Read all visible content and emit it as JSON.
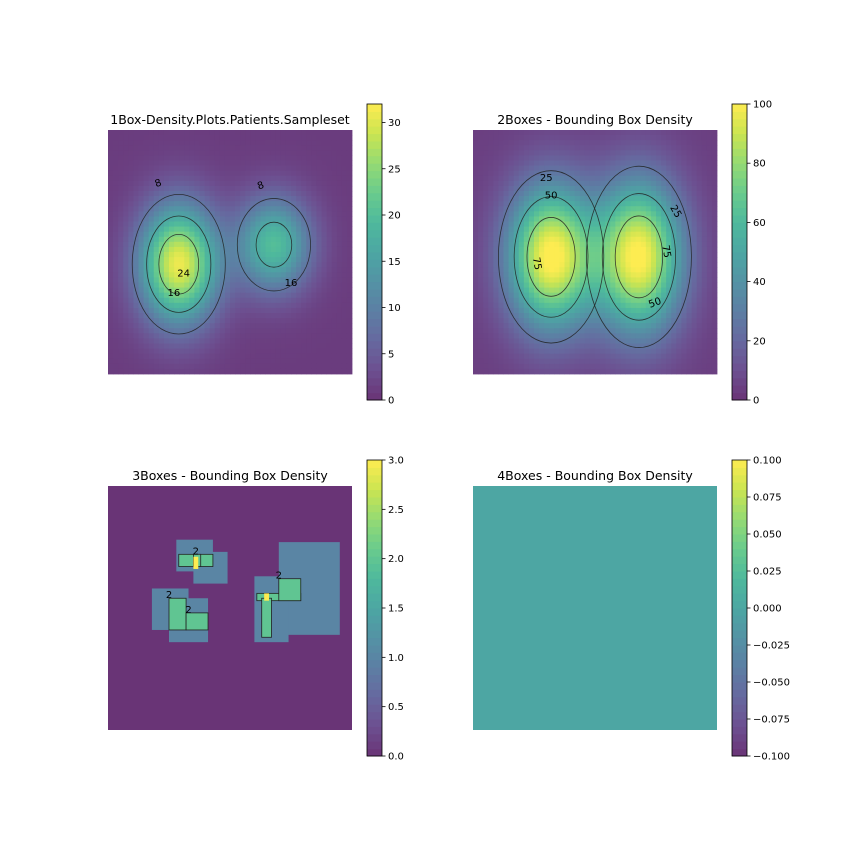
{
  "chart_data": [
    {
      "type": "heatmap",
      "title": "1Box-Density.Plots.Patients.Sampleset",
      "colorbar": {
        "ticks": [
          0,
          5,
          10,
          15,
          20,
          25,
          30
        ],
        "tick_labels": [
          "0",
          "5",
          "10",
          "15",
          "20",
          "25",
          "30"
        ],
        "range": [
          0,
          32
        ]
      },
      "contour_labels": [
        "8",
        "8",
        "16",
        "16",
        "24"
      ],
      "background_value": 1,
      "blobs": [
        {
          "cx": 0.29,
          "cy": 0.55,
          "rx": 0.2,
          "ry": 0.3,
          "peak": 30
        },
        {
          "cx": 0.68,
          "cy": 0.47,
          "rx": 0.19,
          "ry": 0.24,
          "peak": 19
        }
      ]
    },
    {
      "type": "heatmap",
      "title": "2Boxes - Bounding Box Density",
      "colorbar": {
        "ticks": [
          0,
          20,
          40,
          60,
          80,
          100
        ],
        "tick_labels": [
          "0",
          "20",
          "40",
          "60",
          "80",
          "100"
        ],
        "range": [
          0,
          100
        ]
      },
      "contour_labels": [
        "25",
        "50",
        "75",
        "25",
        "75",
        "50"
      ],
      "background_value": 4,
      "blobs": [
        {
          "cx": 0.32,
          "cy": 0.52,
          "rx": 0.22,
          "ry": 0.36,
          "peak": 98
        },
        {
          "cx": 0.68,
          "cy": 0.52,
          "rx": 0.22,
          "ry": 0.38,
          "peak": 97
        }
      ]
    },
    {
      "type": "heatmap",
      "title": "3Boxes - Bounding Box Density",
      "colorbar": {
        "ticks": [
          0,
          0.5,
          1,
          1.5,
          2,
          2.5,
          3
        ],
        "tick_labels": [
          "0.0",
          "0.5",
          "1.0",
          "1.5",
          "2.0",
          "2.5",
          "3.0"
        ],
        "range": [
          0,
          3
        ]
      },
      "contour_labels": [
        "2",
        "2",
        "2",
        "2"
      ],
      "background_value": 0,
      "value_one_boxes": [
        [
          0.28,
          0.22,
          0.43,
          0.35
        ],
        [
          0.35,
          0.27,
          0.49,
          0.4
        ],
        [
          0.18,
          0.42,
          0.33,
          0.59
        ],
        [
          0.25,
          0.46,
          0.41,
          0.64
        ],
        [
          0.7,
          0.23,
          0.95,
          0.61
        ],
        [
          0.6,
          0.37,
          0.74,
          0.64
        ]
      ],
      "value_two_boxes": [
        [
          0.29,
          0.28,
          0.43,
          0.33
        ],
        [
          0.35,
          0.28,
          0.38,
          0.33
        ],
        [
          0.25,
          0.46,
          0.32,
          0.59
        ],
        [
          0.32,
          0.52,
          0.41,
          0.59
        ],
        [
          0.61,
          0.44,
          0.79,
          0.47
        ],
        [
          0.7,
          0.38,
          0.79,
          0.47
        ],
        [
          0.63,
          0.46,
          0.67,
          0.62
        ]
      ],
      "value_three_boxes": [
        [
          0.35,
          0.29,
          0.37,
          0.34
        ],
        [
          0.64,
          0.44,
          0.66,
          0.47
        ]
      ]
    },
    {
      "type": "heatmap",
      "title": "4Boxes - Bounding Box Density",
      "colorbar": {
        "ticks": [
          -0.1,
          -0.075,
          -0.05,
          -0.025,
          0,
          0.025,
          0.05,
          0.075,
          0.1
        ],
        "tick_labels": [
          "−0.100",
          "−0.075",
          "−0.050",
          "−0.025",
          "0.000",
          "0.025",
          "0.050",
          "0.075",
          "0.100"
        ],
        "range": [
          -0.1,
          0.1
        ]
      },
      "contour_labels": [],
      "background_value": 0
    }
  ]
}
